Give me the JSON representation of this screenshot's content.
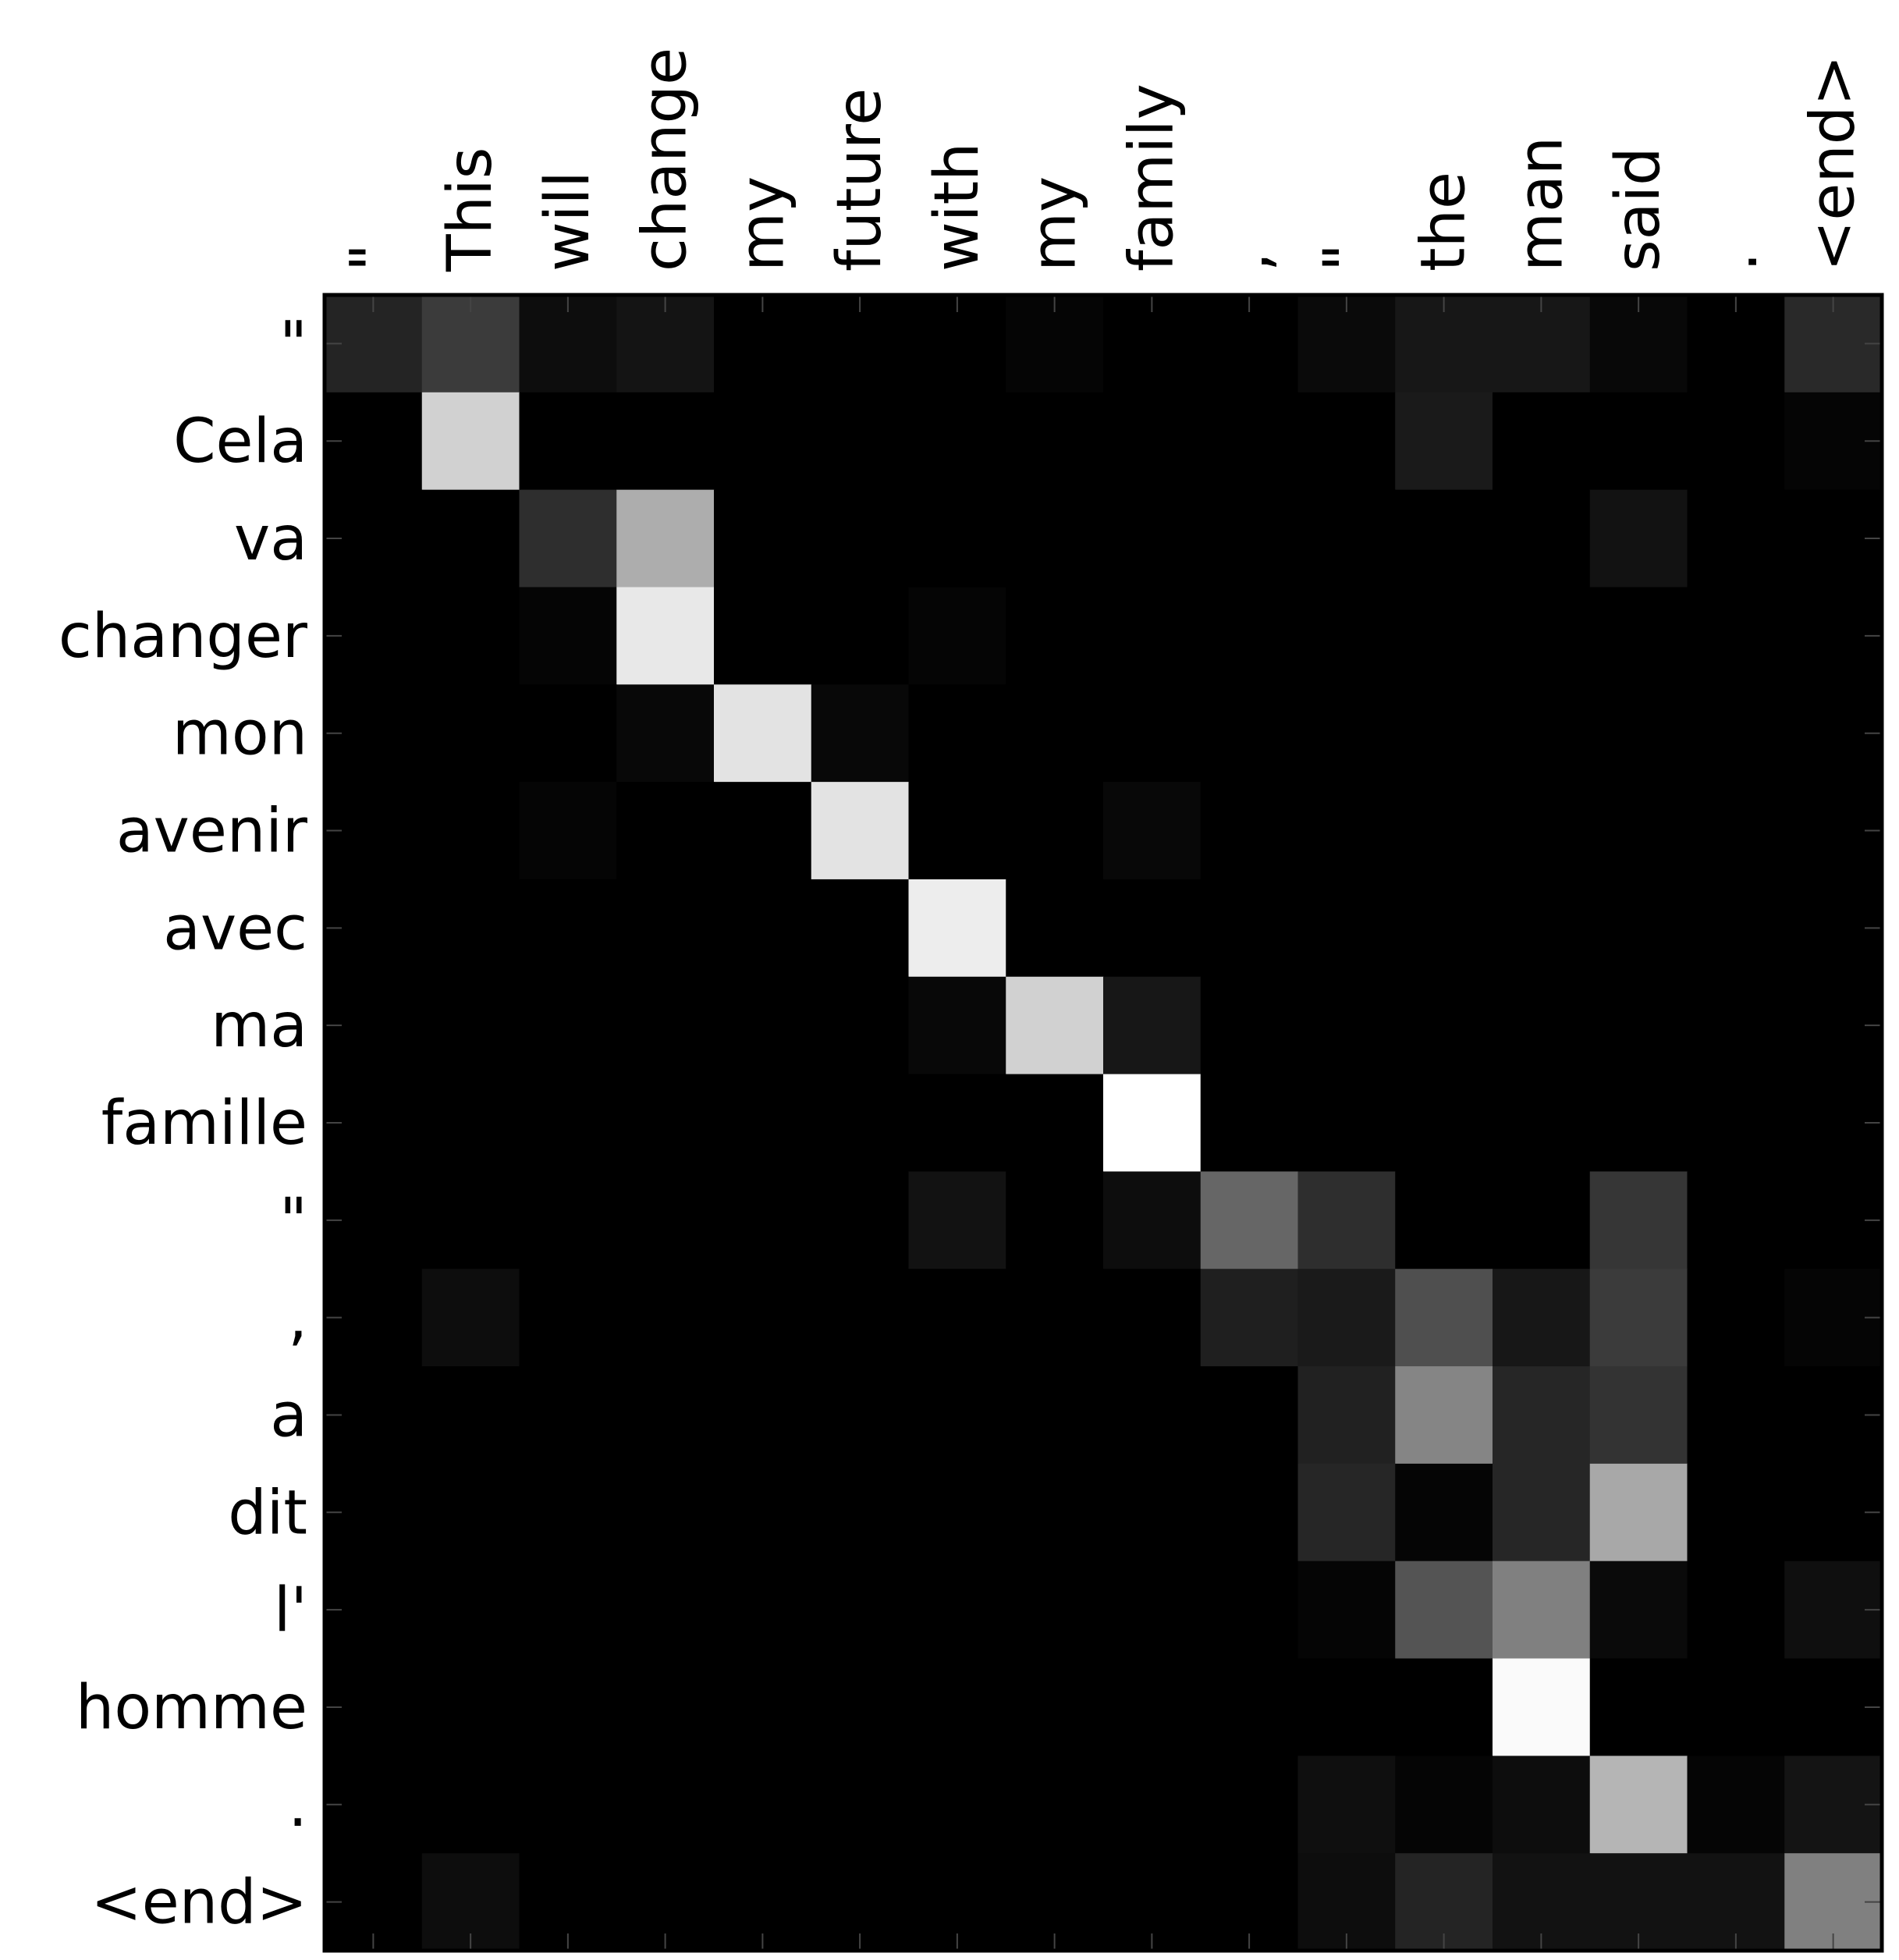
{
  "chart_data": {
    "type": "heatmap",
    "colormap": "grayscale",
    "value_range": [
      0,
      1
    ],
    "x_tick_labels": [
      "\"",
      "This",
      "will",
      "change",
      "my",
      "future",
      "with",
      "my",
      "family",
      ",",
      "\"",
      "the",
      "man",
      "said",
      ".",
      "<end>"
    ],
    "y_tick_labels": [
      "\"",
      "Cela",
      "va",
      "changer",
      "mon",
      "avenir",
      "avec",
      "ma",
      "famille",
      "\"",
      ",",
      "a",
      "dit",
      "l'",
      "homme",
      ".",
      "<end>"
    ],
    "values": [
      [
        0.14,
        0.23,
        0.05,
        0.08,
        0,
        0,
        0,
        0.02,
        0,
        0,
        0.04,
        0.09,
        0.09,
        0.03,
        0,
        0.16
      ],
      [
        0,
        0.82,
        0,
        0,
        0,
        0,
        0,
        0,
        0,
        0,
        0,
        0.1,
        0,
        0,
        0,
        0.02
      ],
      [
        0,
        0,
        0.18,
        0.68,
        0,
        0,
        0,
        0,
        0,
        0,
        0,
        0,
        0,
        0.07,
        0,
        0
      ],
      [
        0,
        0,
        0.02,
        0.91,
        0,
        0,
        0.02,
        0,
        0,
        0,
        0,
        0,
        0,
        0,
        0,
        0
      ],
      [
        0,
        0,
        0,
        0.03,
        0.89,
        0.03,
        0,
        0,
        0,
        0,
        0,
        0,
        0,
        0,
        0,
        0
      ],
      [
        0,
        0,
        0.02,
        0,
        0,
        0.89,
        0,
        0,
        0.03,
        0,
        0,
        0,
        0,
        0,
        0,
        0
      ],
      [
        0,
        0,
        0,
        0,
        0,
        0,
        0.93,
        0,
        0,
        0,
        0,
        0,
        0,
        0,
        0,
        0
      ],
      [
        0,
        0,
        0,
        0,
        0,
        0,
        0.03,
        0.82,
        0.09,
        0,
        0,
        0,
        0,
        0,
        0,
        0
      ],
      [
        0,
        0,
        0,
        0,
        0,
        0,
        0,
        0,
        1.0,
        0,
        0,
        0,
        0,
        0,
        0,
        0
      ],
      [
        0,
        0,
        0,
        0,
        0,
        0,
        0.07,
        0,
        0.05,
        0.4,
        0.18,
        0,
        0,
        0.21,
        0,
        0
      ],
      [
        0,
        0.05,
        0,
        0,
        0,
        0,
        0,
        0,
        0,
        0.12,
        0.1,
        0.31,
        0.09,
        0.23,
        0,
        0.02
      ],
      [
        0,
        0,
        0,
        0,
        0,
        0,
        0,
        0,
        0,
        0,
        0.13,
        0.52,
        0.15,
        0.2,
        0,
        0
      ],
      [
        0,
        0,
        0,
        0,
        0,
        0,
        0,
        0,
        0,
        0,
        0.15,
        0.02,
        0.15,
        0.66,
        0,
        0
      ],
      [
        0,
        0,
        0,
        0,
        0,
        0,
        0,
        0,
        0,
        0,
        0.02,
        0.33,
        0.5,
        0.04,
        0,
        0.06
      ],
      [
        0,
        0,
        0,
        0,
        0,
        0,
        0,
        0,
        0,
        0,
        0,
        0,
        0.98,
        0,
        0,
        0
      ],
      [
        0,
        0,
        0,
        0,
        0,
        0,
        0,
        0,
        0,
        0,
        0.06,
        0.02,
        0.05,
        0.71,
        0.02,
        0.08
      ],
      [
        0,
        0.05,
        0,
        0,
        0,
        0,
        0,
        0,
        0,
        0,
        0.05,
        0.14,
        0.07,
        0.07,
        0.07,
        0.5
      ]
    ]
  }
}
